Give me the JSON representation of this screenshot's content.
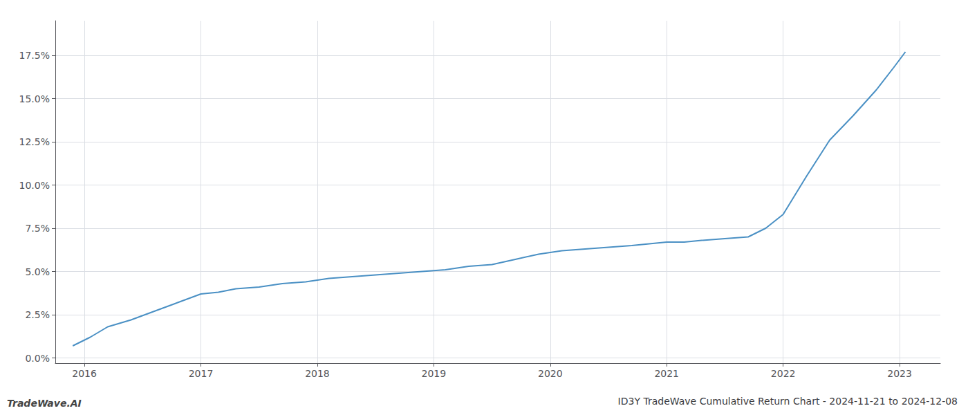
{
  "chart_data": {
    "type": "line",
    "title": "ID3Y TradeWave Cumulative Return Chart - 2024-11-21 to 2024-12-08",
    "annotations": [
      "TradeWave.AI"
    ],
    "color": "#4a90c4",
    "x": [
      2015.9,
      2016.05,
      2016.2,
      2016.4,
      2016.6,
      2016.8,
      2017.0,
      2017.15,
      2017.3,
      2017.5,
      2017.7,
      2017.9,
      2018.1,
      2018.3,
      2018.5,
      2018.7,
      2018.9,
      2019.1,
      2019.3,
      2019.5,
      2019.7,
      2019.9,
      2020.1,
      2020.3,
      2020.5,
      2020.7,
      2020.85,
      2021.0,
      2021.05,
      2021.15,
      2021.3,
      2021.5,
      2021.7,
      2021.85,
      2022.0,
      2022.2,
      2022.4,
      2022.6,
      2022.8,
      2022.95,
      2023.05
    ],
    "values": [
      0.007,
      0.012,
      0.018,
      0.022,
      0.027,
      0.032,
      0.037,
      0.038,
      0.04,
      0.041,
      0.043,
      0.044,
      0.046,
      0.047,
      0.048,
      0.049,
      0.05,
      0.051,
      0.053,
      0.054,
      0.057,
      0.06,
      0.062,
      0.063,
      0.064,
      0.065,
      0.066,
      0.067,
      0.067,
      0.067,
      0.068,
      0.069,
      0.07,
      0.075,
      0.083,
      0.105,
      0.126,
      0.14,
      0.155,
      0.168,
      0.177
    ],
    "xlim": [
      2015.75,
      2023.35
    ],
    "xticks": [
      2016,
      2017,
      2018,
      2019,
      2020,
      2021,
      2022,
      2023
    ],
    "ylim": [
      -0.003,
      0.195
    ],
    "yticks": [
      {
        "value": 0.0,
        "label": "0.0%"
      },
      {
        "value": 0.025,
        "label": "2.5%"
      },
      {
        "value": 0.05,
        "label": "5.0%"
      },
      {
        "value": 0.075,
        "label": "7.5%"
      },
      {
        "value": 0.1,
        "label": "10.0%"
      },
      {
        "value": 0.125,
        "label": "12.5%"
      },
      {
        "value": 0.15,
        "label": "15.0%"
      },
      {
        "value": 0.175,
        "label": "17.5%"
      }
    ],
    "grid": true
  }
}
